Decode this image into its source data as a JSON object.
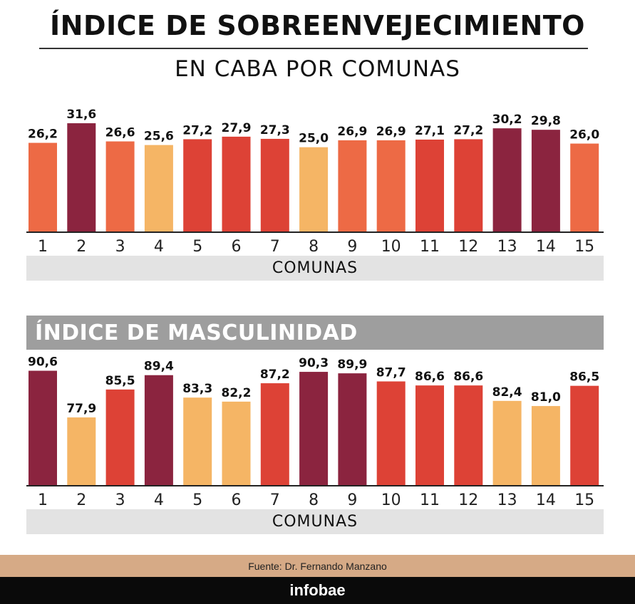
{
  "header": {
    "title": "ÍNDICE DE SOBREENVEJECIMIENTO",
    "subtitle": "EN CABA POR COMUNAS"
  },
  "colors": {
    "light": "#f5b565",
    "orange": "#ed6a45",
    "red": "#dd4236",
    "dark": "#8b243f",
    "band": "#e3e3e3",
    "section_title_bg": "#9e9e9e",
    "source_bg": "#d6aa86",
    "footer_bg": "#0a0a0a"
  },
  "chart_data": [
    {
      "type": "bar",
      "title": "ÍNDICE DE SOBREENVEJECIMIENTO",
      "subtitle": "EN CABA POR COMUNAS",
      "xlabel": "COMUNAS",
      "categories": [
        "1",
        "2",
        "3",
        "4",
        "5",
        "6",
        "7",
        "8",
        "9",
        "10",
        "11",
        "12",
        "13",
        "14",
        "15"
      ],
      "values": [
        26.2,
        31.6,
        26.6,
        25.6,
        27.2,
        27.9,
        27.3,
        25.0,
        26.9,
        26.9,
        27.1,
        27.2,
        30.2,
        29.8,
        26.0
      ],
      "value_labels": [
        "26,2",
        "31,6",
        "26,6",
        "25,6",
        "27,2",
        "27,9",
        "27,3",
        "25,0",
        "26,9",
        "26,9",
        "27,1",
        "27,2",
        "30,2",
        "29,8",
        "26,0"
      ],
      "bar_colors": [
        "orange",
        "dark",
        "orange",
        "light",
        "red",
        "red",
        "red",
        "light",
        "orange",
        "orange",
        "red",
        "red",
        "dark",
        "dark",
        "orange"
      ]
    },
    {
      "type": "bar",
      "title": "ÍNDICE DE MASCULINIDAD",
      "xlabel": "COMUNAS",
      "categories": [
        "1",
        "2",
        "3",
        "4",
        "5",
        "6",
        "7",
        "8",
        "9",
        "10",
        "11",
        "12",
        "13",
        "14",
        "15"
      ],
      "values": [
        90.6,
        77.9,
        85.5,
        89.4,
        83.3,
        82.2,
        87.2,
        90.3,
        89.9,
        87.7,
        86.6,
        86.6,
        82.4,
        81.0,
        86.5
      ],
      "value_labels": [
        "90,6",
        "77,9",
        "85,5",
        "89,4",
        "83,3",
        "82,2",
        "87,2",
        "90,3",
        "89,9",
        "87,7",
        "86,6",
        "86,6",
        "82,4",
        "81,0",
        "86,5"
      ],
      "bar_colors": [
        "dark",
        "light",
        "red",
        "dark",
        "light",
        "light",
        "red",
        "dark",
        "dark",
        "red",
        "red",
        "red",
        "light",
        "light",
        "red"
      ]
    }
  ],
  "source": "Fuente: Dr. Fernando Manzano",
  "brand": "infobae"
}
